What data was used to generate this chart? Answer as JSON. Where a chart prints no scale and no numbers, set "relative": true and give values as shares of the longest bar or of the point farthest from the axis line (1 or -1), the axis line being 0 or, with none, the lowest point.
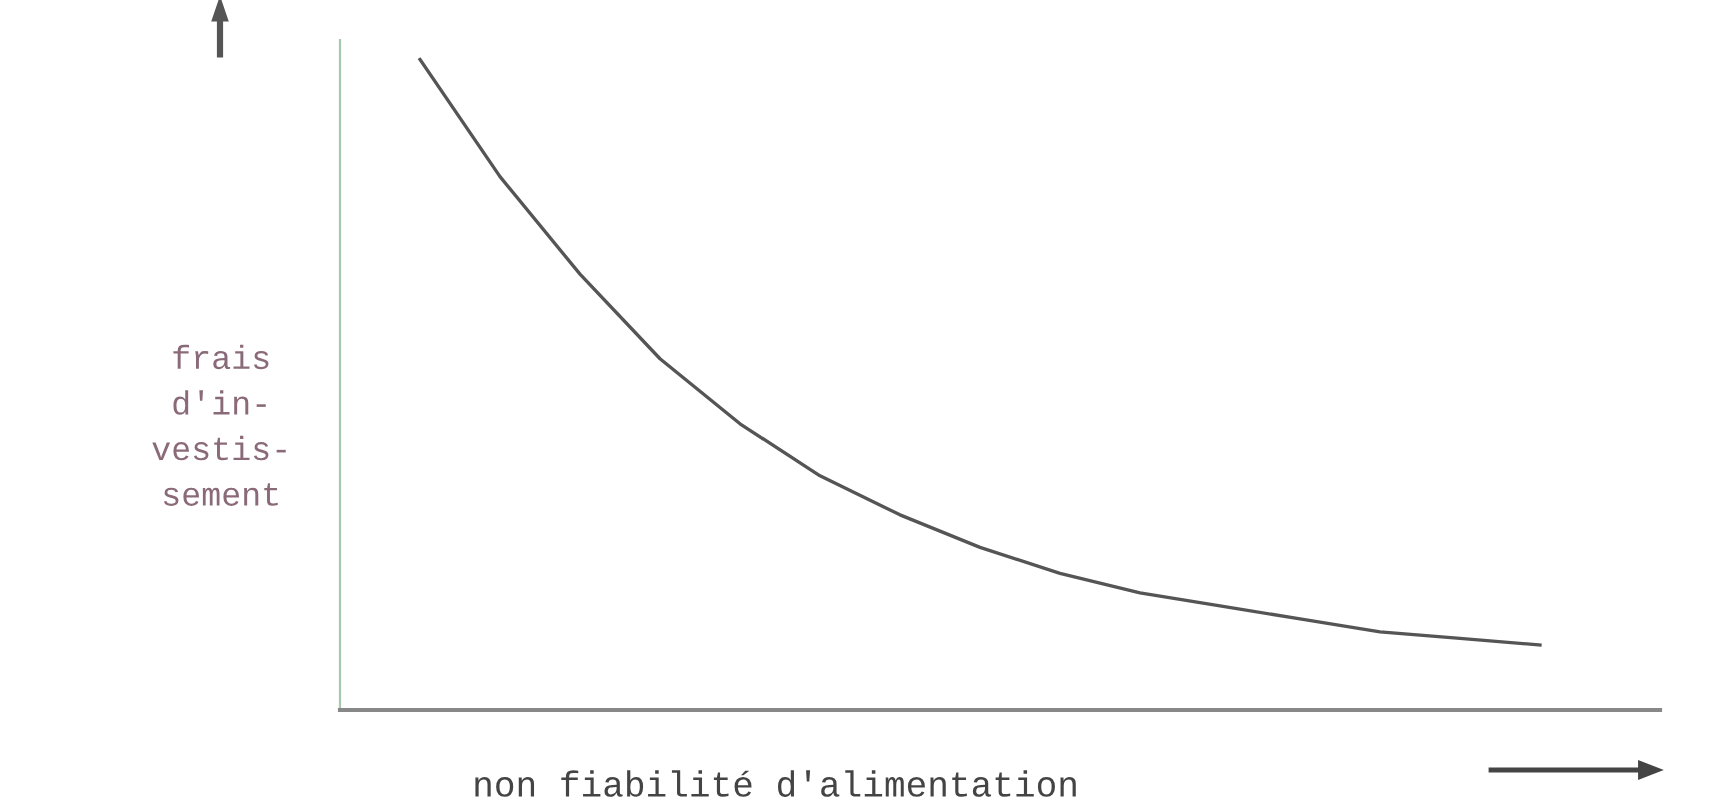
{
  "chart_data": {
    "type": "line",
    "relative": true,
    "xlabel": "non fiabilité d'alimentation",
    "ylabel": "frais\nd'in-\nvestis-\nsement",
    "categories": [
      null,
      null,
      null,
      null,
      null,
      null,
      null,
      null,
      null,
      null,
      null,
      null,
      null,
      null,
      null
    ],
    "values": [
      1,
      0.82,
      0.67,
      0.54,
      0.44,
      0.36,
      0.3,
      0.25,
      0.21,
      0.18,
      0.16,
      0.14,
      0.12,
      0.11,
      0.1
    ],
    "color": "#555555",
    "marker": "none",
    "line_style": "solid"
  }
}
